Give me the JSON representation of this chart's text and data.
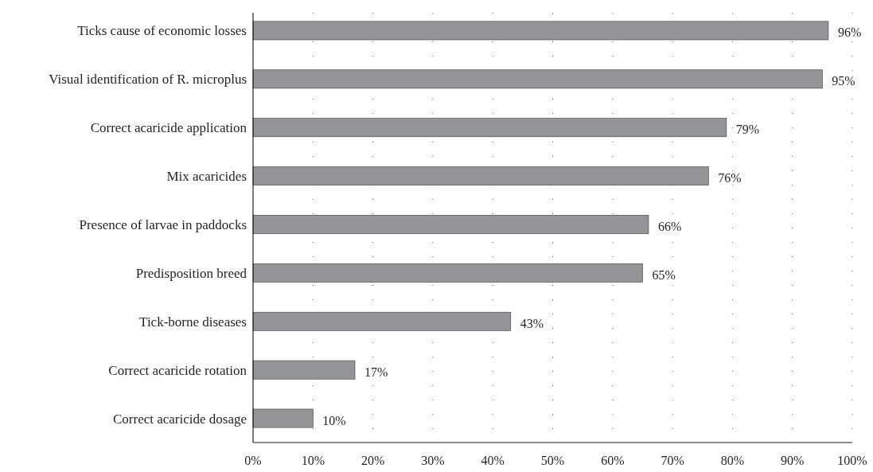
{
  "chart_data": {
    "type": "bar",
    "orientation": "horizontal",
    "categories": [
      "Ticks cause of economic losses",
      "Visual identification of R. microplus",
      "Correct acaricide application",
      "Mix acaricides",
      "Presence of larvae in paddocks",
      "Predisposition breed",
      "Tick-borne diseases",
      "Correct acaricide rotation",
      "Correct acaricide dosage"
    ],
    "values": [
      96,
      95,
      79,
      76,
      66,
      65,
      43,
      17,
      10
    ],
    "value_labels": [
      "96%",
      "95%",
      "79%",
      "76%",
      "66%",
      "65%",
      "43%",
      "17%",
      "10%"
    ],
    "color": "#939598",
    "xlim": [
      0,
      100
    ],
    "xticks": [
      {
        "value": 0,
        "label": "0%"
      },
      {
        "value": 10,
        "label": "10%"
      },
      {
        "value": 20,
        "label": "20%"
      },
      {
        "value": 30,
        "label": "30%"
      },
      {
        "value": 40,
        "label": "40%"
      },
      {
        "value": 50,
        "label": "50%"
      },
      {
        "value": 60,
        "label": "60%"
      },
      {
        "value": 70,
        "label": "70%"
      },
      {
        "value": 80,
        "label": "80%"
      },
      {
        "value": 90,
        "label": "90%"
      },
      {
        "value": 100,
        "label": "100%"
      }
    ],
    "grid": "x"
  }
}
